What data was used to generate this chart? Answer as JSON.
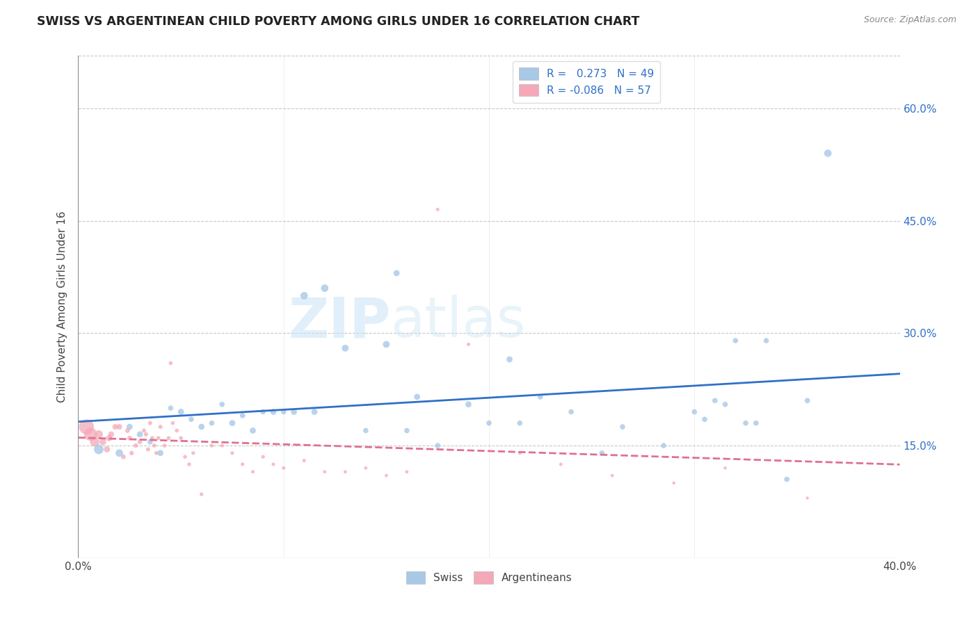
{
  "title": "SWISS VS ARGENTINEAN CHILD POVERTY AMONG GIRLS UNDER 16 CORRELATION CHART",
  "source": "Source: ZipAtlas.com",
  "ylabel": "Child Poverty Among Girls Under 16",
  "xlim": [
    0.0,
    0.4
  ],
  "ylim": [
    0.0,
    0.67
  ],
  "xtick_vals": [
    0.0,
    0.1,
    0.2,
    0.3,
    0.4
  ],
  "xtick_labels_show": [
    "0.0%",
    "",
    "",
    "",
    "40.0%"
  ],
  "ytick_vals": [
    0.15,
    0.3,
    0.45,
    0.6
  ],
  "ytick_right_labels": [
    "15.0%",
    "30.0%",
    "45.0%",
    "60.0%"
  ],
  "swiss_R": "0.273",
  "swiss_N": "49",
  "arg_R": "-0.086",
  "arg_N": "57",
  "swiss_color": "#a8c8e8",
  "swiss_line_color": "#3070c8",
  "arg_color": "#f4a8b8",
  "arg_line_color": "#e07090",
  "watermark_text": "ZIPatlas",
  "background_color": "#ffffff",
  "grid_color": "#c8c8c8",
  "swiss_x": [
    0.01,
    0.02,
    0.025,
    0.03,
    0.035,
    0.04,
    0.045,
    0.05,
    0.055,
    0.06,
    0.065,
    0.07,
    0.075,
    0.08,
    0.085,
    0.09,
    0.095,
    0.1,
    0.105,
    0.11,
    0.115,
    0.12,
    0.13,
    0.14,
    0.15,
    0.155,
    0.16,
    0.165,
    0.175,
    0.19,
    0.2,
    0.21,
    0.215,
    0.225,
    0.24,
    0.255,
    0.265,
    0.285,
    0.3,
    0.305,
    0.31,
    0.315,
    0.32,
    0.325,
    0.33,
    0.335,
    0.345,
    0.355,
    0.365
  ],
  "swiss_y": [
    0.145,
    0.14,
    0.175,
    0.165,
    0.155,
    0.14,
    0.2,
    0.195,
    0.185,
    0.175,
    0.18,
    0.205,
    0.18,
    0.19,
    0.17,
    0.195,
    0.195,
    0.195,
    0.195,
    0.35,
    0.195,
    0.36,
    0.28,
    0.17,
    0.285,
    0.38,
    0.17,
    0.215,
    0.15,
    0.205,
    0.18,
    0.265,
    0.18,
    0.215,
    0.195,
    0.14,
    0.175,
    0.15,
    0.195,
    0.185,
    0.21,
    0.205,
    0.29,
    0.18,
    0.18,
    0.29,
    0.105,
    0.21,
    0.54
  ],
  "swiss_sizes": [
    200,
    120,
    80,
    80,
    60,
    80,
    60,
    80,
    60,
    80,
    60,
    60,
    80,
    60,
    80,
    60,
    80,
    60,
    80,
    120,
    80,
    120,
    100,
    60,
    100,
    80,
    60,
    80,
    60,
    80,
    60,
    80,
    60,
    60,
    60,
    60,
    60,
    60,
    60,
    60,
    60,
    60,
    60,
    60,
    60,
    60,
    60,
    60,
    120
  ],
  "arg_x": [
    0.004,
    0.006,
    0.008,
    0.01,
    0.012,
    0.014,
    0.015,
    0.016,
    0.018,
    0.02,
    0.022,
    0.024,
    0.025,
    0.026,
    0.028,
    0.03,
    0.032,
    0.033,
    0.034,
    0.035,
    0.036,
    0.037,
    0.038,
    0.039,
    0.04,
    0.042,
    0.044,
    0.045,
    0.046,
    0.048,
    0.05,
    0.052,
    0.054,
    0.056,
    0.06,
    0.065,
    0.07,
    0.075,
    0.08,
    0.085,
    0.09,
    0.095,
    0.1,
    0.11,
    0.12,
    0.13,
    0.14,
    0.15,
    0.16,
    0.175,
    0.19,
    0.215,
    0.235,
    0.26,
    0.29,
    0.315,
    0.355
  ],
  "arg_y": [
    0.175,
    0.165,
    0.155,
    0.165,
    0.155,
    0.145,
    0.16,
    0.165,
    0.175,
    0.175,
    0.135,
    0.17,
    0.16,
    0.14,
    0.15,
    0.155,
    0.17,
    0.165,
    0.145,
    0.18,
    0.16,
    0.15,
    0.14,
    0.16,
    0.175,
    0.15,
    0.16,
    0.26,
    0.18,
    0.17,
    0.16,
    0.135,
    0.125,
    0.14,
    0.085,
    0.15,
    0.15,
    0.14,
    0.125,
    0.115,
    0.135,
    0.125,
    0.12,
    0.13,
    0.115,
    0.115,
    0.12,
    0.11,
    0.115,
    0.465,
    0.285,
    0.14,
    0.125,
    0.11,
    0.1,
    0.12,
    0.08
  ],
  "arg_sizes": [
    2000,
    1500,
    800,
    600,
    400,
    350,
    350,
    300,
    280,
    280,
    200,
    200,
    200,
    180,
    180,
    200,
    160,
    160,
    150,
    160,
    150,
    150,
    140,
    150,
    160,
    140,
    150,
    140,
    140,
    140,
    140,
    130,
    130,
    130,
    120,
    130,
    120,
    120,
    120,
    110,
    120,
    110,
    110,
    110,
    100,
    100,
    100,
    100,
    100,
    110,
    110,
    100,
    100,
    100,
    90,
    90,
    80
  ]
}
